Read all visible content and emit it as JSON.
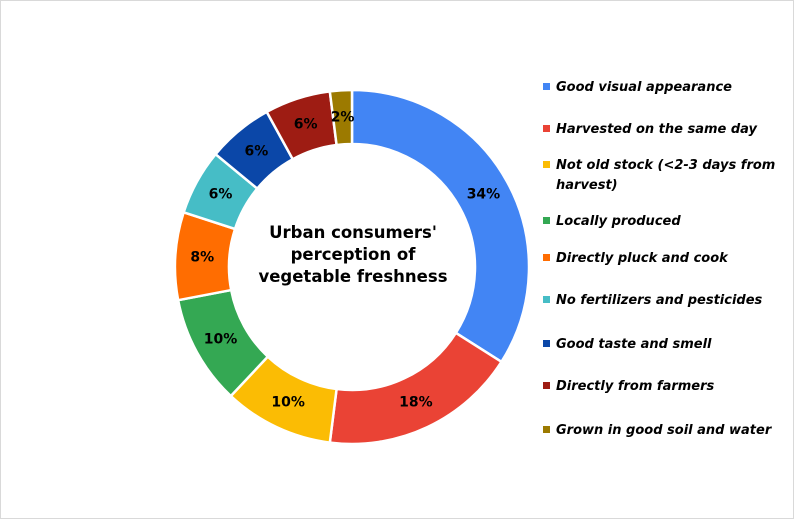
{
  "chart_data": {
    "type": "pie",
    "style": "donut",
    "title": "Urban consumers' perception of vegetable freshness",
    "legend_position": "right",
    "categories": [
      "Good visual appearance",
      "Harvested on the same day",
      "Not old stock (<2-3 days from harvest)",
      "Locally produced",
      "Directly pluck and cook",
      "No fertilizers and pesticides",
      "Good taste and smell",
      "Directly from farmers",
      "Grown in good soil and water"
    ],
    "values": [
      34,
      18,
      10,
      10,
      8,
      6,
      6,
      6,
      2
    ],
    "labels": [
      "34%",
      "18%",
      "10%",
      "10%",
      "8%",
      "6%",
      "6%",
      "6%",
      "2%"
    ],
    "colors": [
      "#4285f4",
      "#ea4335",
      "#fbbc04",
      "#34a853",
      "#ff6d01",
      "#46bdc6",
      "#0b47a8",
      "#9e1c13",
      "#9c7a00"
    ]
  }
}
